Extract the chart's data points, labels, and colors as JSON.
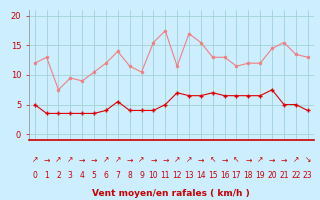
{
  "hours": [
    0,
    1,
    2,
    3,
    4,
    5,
    6,
    7,
    8,
    9,
    10,
    11,
    12,
    13,
    14,
    15,
    16,
    17,
    18,
    19,
    20,
    21,
    22,
    23
  ],
  "rafales": [
    12,
    13,
    7.5,
    9.5,
    9,
    10.5,
    12,
    14,
    11.5,
    10.5,
    15.5,
    17.5,
    11.5,
    17,
    15.5,
    13,
    13,
    11.5,
    12,
    12,
    14.5,
    15.5,
    13.5,
    13
  ],
  "moyen": [
    5,
    3.5,
    3.5,
    3.5,
    3.5,
    3.5,
    4,
    5.5,
    4,
    4,
    4,
    5,
    7,
    6.5,
    6.5,
    7,
    6.5,
    6.5,
    6.5,
    6.5,
    7.5,
    5,
    5,
    4
  ],
  "arrows": [
    "↗",
    "→",
    "↗",
    "↗",
    "→",
    "→",
    "↗",
    "↗",
    "→",
    "↗",
    "→",
    "→",
    "↗",
    "↗",
    "→",
    "↖",
    "→",
    "↖",
    "→",
    "↗",
    "→",
    "→",
    "↗",
    "↘"
  ],
  "line1_color": "#f08080",
  "line2_color": "#dd0000",
  "bg_color": "#cceeff",
  "grid_color": "#99cccc",
  "xlabel": "Vent moyen/en rafales ( km/h )",
  "xlabel_color": "#cc0000",
  "tick_color": "#cc0000",
  "arrow_color": "#cc0000",
  "ylim": [
    -1,
    21
  ],
  "yticks": [
    0,
    5,
    10,
    15,
    20
  ]
}
